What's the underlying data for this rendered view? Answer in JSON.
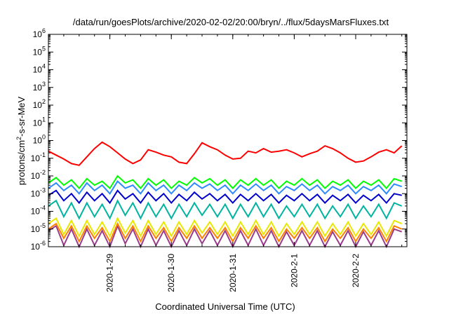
{
  "chart_data": {
    "type": "line",
    "title": "/data/run/goesPlots/archive/2020-02-02/20:00/bryn/../flux/5daysMarsFluxes.txt",
    "xlabel": "Coordinated Universal Time (UTC)",
    "ylabel": {
      "pre": "protons/cm",
      "sup": "2",
      "post": "-s-sr-MeV"
    },
    "yscale": "log",
    "ylim": [
      1e-06,
      1000000.0
    ],
    "yticks": [
      {
        "base": "10",
        "exp": "-6"
      },
      {
        "base": "10",
        "exp": "-5"
      },
      {
        "base": "10",
        "exp": "-4"
      },
      {
        "base": "10",
        "exp": "-3"
      },
      {
        "base": "10",
        "exp": "-2"
      },
      {
        "base": "10",
        "exp": "-1"
      },
      {
        "base": "10",
        "exp": "0"
      },
      {
        "base": "10",
        "exp": "1"
      },
      {
        "base": "10",
        "exp": "2"
      },
      {
        "base": "10",
        "exp": "3"
      },
      {
        "base": "10",
        "exp": "4"
      },
      {
        "base": "10",
        "exp": "5"
      },
      {
        "base": "10",
        "exp": "6"
      }
    ],
    "xlim": [
      "2020-01-28T00:00",
      "2020-02-02T20:00"
    ],
    "xticks": [
      "2020-1-29",
      "2020-1-30",
      "2020-1-31",
      "2020-2-1",
      "2020-2-2"
    ],
    "x": [
      "2020-01-28 00:00",
      "2020-01-28 03:00",
      "2020-01-28 06:00",
      "2020-01-28 09:00",
      "2020-01-28 12:00",
      "2020-01-28 15:00",
      "2020-01-28 18:00",
      "2020-01-28 21:00",
      "2020-01-29 00:00",
      "2020-01-29 03:00",
      "2020-01-29 06:00",
      "2020-01-29 09:00",
      "2020-01-29 12:00",
      "2020-01-29 15:00",
      "2020-01-29 18:00",
      "2020-01-29 21:00",
      "2020-01-30 00:00",
      "2020-01-30 03:00",
      "2020-01-30 06:00",
      "2020-01-30 09:00",
      "2020-01-30 12:00",
      "2020-01-30 15:00",
      "2020-01-30 18:00",
      "2020-01-30 21:00",
      "2020-01-31 00:00",
      "2020-01-31 03:00",
      "2020-01-31 06:00",
      "2020-01-31 09:00",
      "2020-01-31 12:00",
      "2020-01-31 15:00",
      "2020-01-31 18:00",
      "2020-01-31 21:00",
      "2020-02-01 00:00",
      "2020-02-01 03:00",
      "2020-02-01 06:00",
      "2020-02-01 09:00",
      "2020-02-01 12:00",
      "2020-02-01 15:00",
      "2020-02-01 18:00",
      "2020-02-01 21:00",
      "2020-02-02 00:00",
      "2020-02-02 03:00",
      "2020-02-02 06:00",
      "2020-02-02 09:00",
      "2020-02-02 12:00",
      "2020-02-02 15:00",
      "2020-02-02 18:00"
    ],
    "grid": false,
    "legend": false,
    "series": [
      {
        "color": "#ff0000",
        "values": [
          0.25,
          0.15,
          0.09,
          0.05,
          0.04,
          0.12,
          0.35,
          0.8,
          0.45,
          0.2,
          0.09,
          0.05,
          0.08,
          0.3,
          0.22,
          0.15,
          0.12,
          0.06,
          0.05,
          0.18,
          0.75,
          0.45,
          0.3,
          0.15,
          0.09,
          0.1,
          0.25,
          0.2,
          0.35,
          0.22,
          0.25,
          0.3,
          0.2,
          0.12,
          0.18,
          0.25,
          0.5,
          0.35,
          0.2,
          0.1,
          0.06,
          0.07,
          0.12,
          0.22,
          0.3,
          0.2,
          0.5
        ]
      },
      {
        "color": "#00ff00",
        "values": [
          0.004,
          0.008,
          0.003,
          0.006,
          0.002,
          0.007,
          0.003,
          0.005,
          0.002,
          0.01,
          0.004,
          0.006,
          0.002,
          0.007,
          0.003,
          0.006,
          0.002,
          0.005,
          0.003,
          0.008,
          0.004,
          0.007,
          0.003,
          0.006,
          0.002,
          0.006,
          0.003,
          0.007,
          0.003,
          0.006,
          0.002,
          0.005,
          0.003,
          0.007,
          0.003,
          0.006,
          0.002,
          0.005,
          0.003,
          0.006,
          0.002,
          0.005,
          0.003,
          0.006,
          0.002,
          0.007,
          0.005
        ]
      },
      {
        "color": "#2e8bff",
        "values": [
          0.002,
          0.004,
          0.0015,
          0.003,
          0.001,
          0.004,
          0.0015,
          0.003,
          0.001,
          0.005,
          0.002,
          0.003,
          0.001,
          0.004,
          0.0015,
          0.003,
          0.001,
          0.003,
          0.0015,
          0.004,
          0.002,
          0.0035,
          0.0015,
          0.003,
          0.001,
          0.003,
          0.0015,
          0.0035,
          0.0015,
          0.003,
          0.001,
          0.0025,
          0.0015,
          0.0035,
          0.0015,
          0.003,
          0.001,
          0.0025,
          0.0015,
          0.003,
          0.001,
          0.0025,
          0.0015,
          0.003,
          0.001,
          0.0035,
          0.0025
        ]
      },
      {
        "color": "#0000cc",
        "values": [
          0.0008,
          0.0015,
          0.0004,
          0.001,
          0.0003,
          0.0012,
          0.0004,
          0.001,
          0.0003,
          0.0015,
          0.0005,
          0.001,
          0.0003,
          0.0012,
          0.0004,
          0.001,
          0.0003,
          0.0009,
          0.0004,
          0.0012,
          0.0005,
          0.001,
          0.0004,
          0.0009,
          0.0003,
          0.0009,
          0.0004,
          0.001,
          0.0004,
          0.0009,
          0.0003,
          0.0008,
          0.0004,
          0.001,
          0.0004,
          0.0009,
          0.0003,
          0.0008,
          0.0004,
          0.0009,
          0.0003,
          0.0008,
          0.0004,
          0.0009,
          0.0003,
          0.001,
          0.0008
        ]
      },
      {
        "color": "#00b4a0",
        "values": [
          0.0002,
          0.0004,
          5e-05,
          0.0003,
          4e-05,
          0.0003,
          5e-05,
          0.00025,
          4e-05,
          0.0004,
          6e-05,
          0.0003,
          4e-05,
          0.0003,
          5e-05,
          0.00025,
          4e-05,
          0.00025,
          5e-05,
          0.0003,
          6e-05,
          0.00025,
          5e-05,
          0.00025,
          4e-05,
          0.00025,
          5e-05,
          0.0003,
          5e-05,
          0.00025,
          4e-05,
          0.0002,
          5e-05,
          0.00025,
          5e-05,
          0.00025,
          4e-05,
          0.0002,
          5e-05,
          0.00025,
          4e-05,
          0.0002,
          5e-05,
          0.00025,
          4e-05,
          0.0003,
          0.0002
        ]
      },
      {
        "color": "#e8e800",
        "values": [
          2e-05,
          4e-05,
          5e-06,
          3e-05,
          4e-06,
          3e-05,
          5e-06,
          2.5e-05,
          4e-06,
          4e-05,
          6e-06,
          3e-05,
          4e-06,
          3e-05,
          5e-06,
          2.5e-05,
          4e-06,
          2.5e-05,
          5e-06,
          3e-05,
          6e-06,
          2.5e-05,
          5e-06,
          2.5e-05,
          4e-06,
          2.5e-05,
          5e-06,
          3e-05,
          5e-06,
          2.5e-05,
          4e-06,
          2e-05,
          5e-06,
          2.5e-05,
          5e-06,
          2.5e-05,
          4e-06,
          2e-05,
          5e-06,
          2.5e-05,
          4e-06,
          2e-05,
          5e-06,
          2.5e-05,
          4e-06,
          3e-05,
          2e-05
        ]
      },
      {
        "color": "#ff8000",
        "values": [
          1e-05,
          2e-05,
          3e-06,
          1.5e-05,
          2e-06,
          1.5e-05,
          3e-06,
          1.2e-05,
          2e-06,
          2e-05,
          3e-06,
          1.5e-05,
          2e-06,
          1.5e-05,
          3e-06,
          1.2e-05,
          2e-06,
          1.2e-05,
          3e-06,
          1.5e-05,
          3e-06,
          1.2e-05,
          3e-06,
          1.2e-05,
          2e-06,
          1.2e-05,
          3e-06,
          1.5e-05,
          3e-06,
          1.2e-05,
          2e-06,
          1e-05,
          3e-06,
          1.2e-05,
          3e-06,
          1.2e-05,
          2e-06,
          1e-05,
          3e-06,
          1.2e-05,
          2e-06,
          1e-05,
          3e-06,
          1.2e-05,
          2e-06,
          1.5e-05,
          1e-05
        ]
      },
      {
        "color": "#9b3b8c",
        "values": [
          8e-06,
          1.5e-05,
          1.2e-06,
          1e-05,
          1e-06,
          1e-05,
          1.2e-06,
          8e-06,
          1e-06,
          1.5e-05,
          1.5e-06,
          1e-05,
          1e-06,
          1e-05,
          1.2e-06,
          8e-06,
          1e-06,
          8e-06,
          1.2e-06,
          1e-05,
          1.5e-06,
          8e-06,
          1.2e-06,
          8e-06,
          1e-06,
          8e-06,
          1.2e-06,
          1e-05,
          1.2e-06,
          8e-06,
          1e-06,
          7e-06,
          1.2e-06,
          8e-06,
          1.2e-06,
          8e-06,
          1e-06,
          7e-06,
          1.2e-06,
          8e-06,
          1e-06,
          7e-06,
          1.2e-06,
          8e-06,
          1e-06,
          1e-05,
          7e-06
        ]
      }
    ]
  }
}
